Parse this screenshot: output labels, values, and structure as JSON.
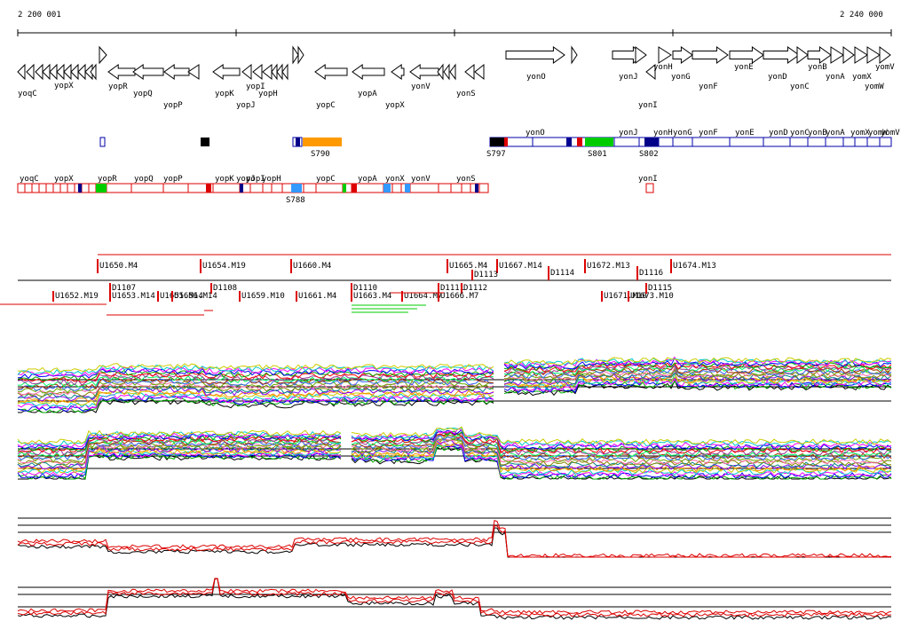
{
  "ruler": {
    "start_label": "2 200 001",
    "end_label": "2 240 000"
  },
  "colors": {
    "gene": "#000000",
    "segment_blue": "#0000aa",
    "segment_red": "#dd0000",
    "orange": "#ff9900",
    "green": "#00cc00",
    "cyan": "#3399ff",
    "navy": "#000088",
    "black_fill": "#000000",
    "trace_red": "#dd0000",
    "trace_black": "#000000"
  },
  "genes_top": [
    "yoqC",
    "yopX",
    "yopR",
    "yopQ",
    "yopP",
    "yopK",
    "yopI",
    "yopJ",
    "yopH",
    "yopC",
    "yopA",
    "yopX",
    "yonV",
    "yonS",
    "yonO",
    "yonJ",
    "yonI",
    "yonH",
    "yonG",
    "yonF",
    "yonE",
    "yonD",
    "yonC",
    "yonB",
    "yonA",
    "yomX",
    "yomV",
    "yomW"
  ],
  "track_blue": {
    "labels": [
      "yonO",
      "yonJ",
      "yonH",
      "yonG",
      "yonF",
      "yonE",
      "yonD",
      "yonC",
      "yonB",
      "yonA",
      "yomX",
      "yomW",
      "yomV"
    ],
    "markers": [
      "S790",
      "S797",
      "S801",
      "S802"
    ]
  },
  "track_red": {
    "labels": [
      "yoqC",
      "yopX",
      "yopR",
      "yopQ",
      "yopP",
      "yopK",
      "yopJ",
      "yopI",
      "yopH",
      "yopC",
      "yopA",
      "yonX",
      "yonV",
      "yonS",
      "yonI"
    ],
    "markers": [
      "S788"
    ]
  },
  "transcripts_upper": [
    "U1650.M4",
    "U1654.M19",
    "U1660.M4",
    "U1665.M4",
    "U1667.M14",
    "D1114",
    "U1672.M13",
    "D1116",
    "U1674.M13"
  ],
  "transcripts_lower": [
    "U1652.M19",
    "D1107",
    "U1653.M14",
    "U1655.M14",
    "D1108",
    "U1656.M14",
    "U1659.M10",
    "U1661.M4",
    "D1110",
    "U1663.M4",
    "U1664.M7",
    "D1111",
    "D1112",
    "U1666.M7",
    "D1113",
    "U1671.M10",
    "U1673.M10",
    "D1115"
  ]
}
